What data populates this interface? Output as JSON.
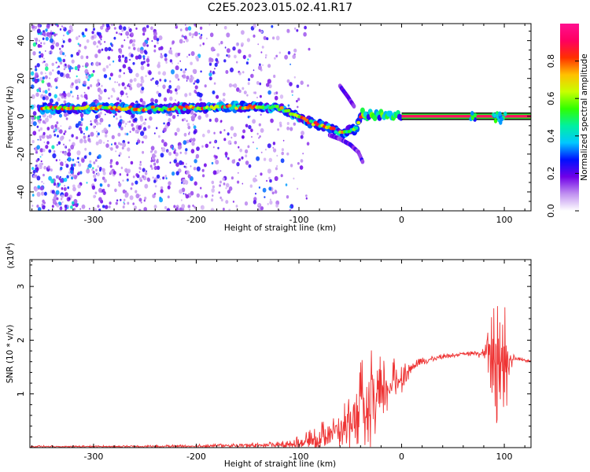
{
  "figure": {
    "title": "C2E5.2023.015.02.41.R17"
  },
  "chart_data": [
    {
      "type": "heatmap",
      "xlabel": "Height of straight line (km)",
      "ylabel": "Frequency (Hz)",
      "xlim": [
        -362,
        126
      ],
      "ylim": [
        -50,
        49
      ],
      "x_ticks": [
        -300,
        -200,
        -100,
        0,
        100
      ],
      "y_ticks": [
        -40,
        -20,
        0,
        20,
        40
      ],
      "colorbar": {
        "label": "Normalized spectral amplitude",
        "range": [
          0,
          1
        ],
        "ticks": [
          0.0,
          0.2,
          0.4,
          0.6,
          0.8
        ],
        "colors": [
          "#ffffff",
          "#c090f0",
          "#7000e8",
          "#0010ff",
          "#00c8ff",
          "#00f0a0",
          "#30ff00",
          "#c8ff00",
          "#ffc000",
          "#ff3000",
          "#ff0060",
          "#ff1090"
        ]
      },
      "ridge": {
        "x": [
          -350,
          -300,
          -250,
          -200,
          -160,
          -120,
          -105,
          -90,
          -80,
          -70,
          -60,
          -45,
          -38,
          -30,
          -20,
          -10,
          0,
          50,
          100,
          126
        ],
        "y": [
          4,
          4.5,
          4,
          4.5,
          5,
          4.5,
          1,
          -3,
          -4.5,
          -6,
          -9,
          -7,
          1,
          0.5,
          1,
          0.5,
          0,
          0,
          0,
          0
        ]
      },
      "branches": [
        {
          "x": [
            -70,
            -60,
            -50,
            -42,
            -38
          ],
          "y": [
            -10,
            -12,
            -15,
            -19,
            -24
          ]
        },
        {
          "x": [
            -60,
            -52,
            -46
          ],
          "y": [
            16,
            10,
            5
          ]
        }
      ],
      "steady_line": {
        "x_start": 0,
        "x_end": 126,
        "y": 0
      }
    },
    {
      "type": "line",
      "xlabel": "Height of straight line (km)",
      "ylabel": "SNR (10 * v/v)",
      "y_exponent_label": "(x10",
      "y_exponent_sup": "4",
      "y_exponent_close": ")",
      "xlim": [
        -362,
        126
      ],
      "ylim": [
        0,
        3.5
      ],
      "x_ticks": [
        -300,
        -200,
        -100,
        0,
        100
      ],
      "y_ticks": [
        1,
        2,
        3
      ],
      "series": [
        {
          "color": "#ee3333",
          "x": [
            -362,
            -300,
            -250,
            -200,
            -160,
            -130,
            -110,
            -100,
            -90,
            -80,
            -70,
            -60,
            -50,
            -40,
            -30,
            -20,
            -10,
            0,
            10,
            20,
            30,
            40,
            50,
            60,
            70,
            80,
            85,
            90,
            95,
            100,
            105,
            110,
            126
          ],
          "y": [
            0.02,
            0.02,
            0.02,
            0.03,
            0.04,
            0.05,
            0.06,
            0.08,
            0.12,
            0.18,
            0.3,
            0.35,
            0.5,
            0.7,
            0.8,
            0.9,
            1.2,
            1.3,
            1.5,
            1.6,
            1.65,
            1.7,
            1.72,
            1.74,
            1.75,
            1.75,
            1.76,
            1.72,
            1.7,
            1.65,
            1.65,
            1.65,
            1.62
          ],
          "spread": [
            0.02,
            0.02,
            0.02,
            0.03,
            0.05,
            0.05,
            0.08,
            0.15,
            0.2,
            0.3,
            0.25,
            0.35,
            0.6,
            0.9,
            1.2,
            0.8,
            0.5,
            0.3,
            0.1,
            0.08,
            0.06,
            0.05,
            0.04,
            0.04,
            0.05,
            0.1,
            0.5,
            1.3,
            1.5,
            1.6,
            0.3,
            0.05,
            0.03
          ]
        }
      ]
    }
  ]
}
